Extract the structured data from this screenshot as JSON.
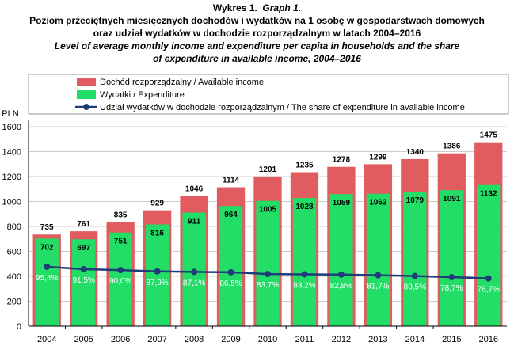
{
  "title": {
    "line1_pl": "Wykres 1.",
    "line1_en": "Graph 1.",
    "line2": "Poziom przeciętnych miesięcznych dochodów i wydatków na 1 osobę w gospodarstwach domowych",
    "line3": "oraz udział wydatków w dochodzie rozporządzalnym w latach 2004–2016",
    "line4": "Level of average monthly income and expenditure per capita in households and the share",
    "line5": "of expenditure in available income, 2004–2016"
  },
  "chart_data": {
    "type": "bar",
    "ylabel": "PLN",
    "ylim": [
      0,
      1600
    ],
    "yticks": [
      0,
      200,
      400,
      600,
      800,
      1000,
      1200,
      1400,
      1600
    ],
    "grid": true,
    "legend_position": "top",
    "categories": [
      "2004",
      "2005",
      "2006",
      "2007",
      "2008",
      "2009",
      "2010",
      "2011",
      "2012",
      "2013",
      "2014",
      "2015",
      "2016"
    ],
    "series": [
      {
        "name": "Dochód rozporządzalny / Available income",
        "type": "bar",
        "color": "#e05c5e",
        "values": [
          735,
          761,
          835,
          929,
          1046,
          1114,
          1201,
          1235,
          1278,
          1299,
          1340,
          1386,
          1475
        ]
      },
      {
        "name": "Wydatki / Expenditure",
        "type": "bar",
        "color": "#22dd66",
        "values": [
          702,
          697,
          751,
          816,
          911,
          964,
          1005,
          1028,
          1059,
          1062,
          1079,
          1091,
          1132
        ]
      },
      {
        "name": "Udział wydatków w dochodzie rozporządzalnym / The share of expenditure in available income",
        "type": "line",
        "color": "#1f3c7a",
        "values": [
          95.4,
          91.5,
          90.0,
          87.9,
          87.1,
          86.5,
          83.7,
          83.2,
          82.8,
          81.7,
          80.5,
          78.7,
          76.7
        ],
        "labels": [
          "95,4%",
          "91,5%",
          "90,0%",
          "87,9%",
          "87,1%",
          "86,5%",
          "83,7%",
          "83,2%",
          "82,8%",
          "81,7%",
          "80,5%",
          "78,7%",
          "76,7%"
        ]
      }
    ]
  }
}
